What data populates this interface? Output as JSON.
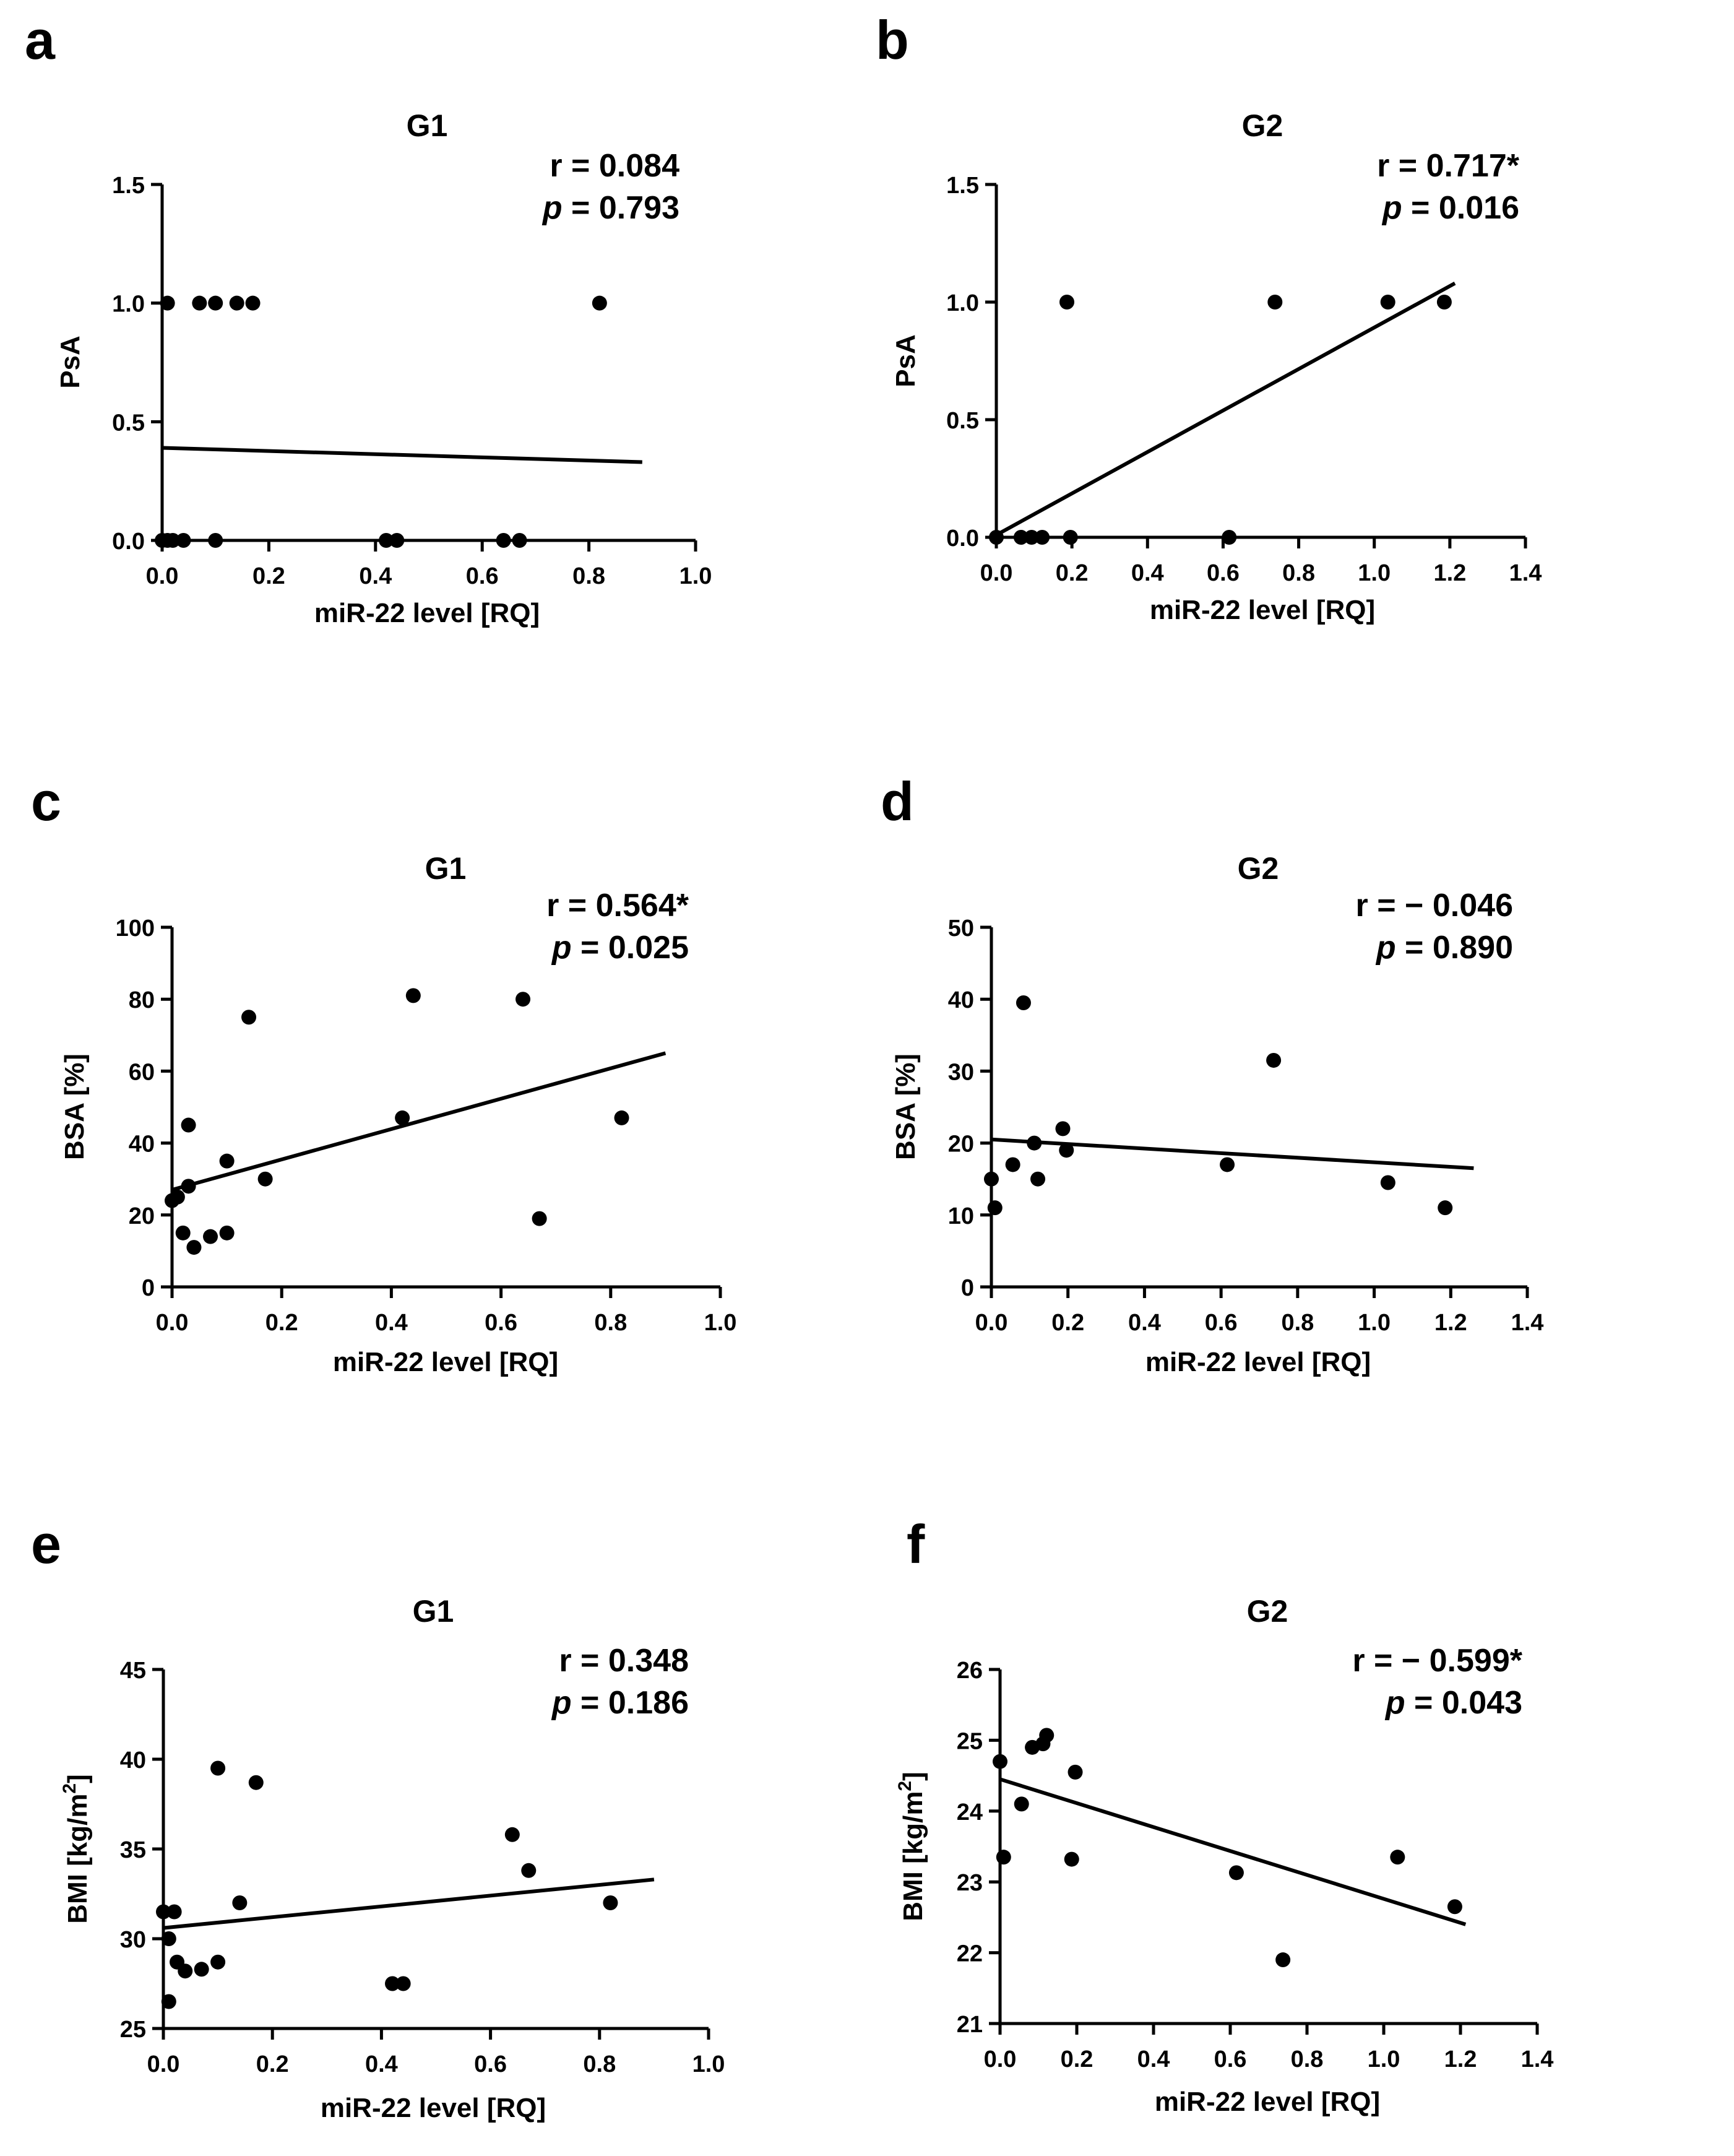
{
  "chart_data": [
    {
      "panel": "a",
      "type": "scatter",
      "title": "G1",
      "stats": {
        "r": "r = 0.084",
        "p_prefix": "p",
        "p_value": " = 0.793"
      },
      "xlabel": "miR-22 level [RQ]",
      "ylabel": "PsA",
      "xlim": [
        0,
        1.0
      ],
      "ylim": [
        0,
        1.5
      ],
      "xticks": [
        "0.0",
        "0.2",
        "0.4",
        "0.6",
        "0.8",
        "1.0"
      ],
      "yticks": [
        "0.0",
        "0.5",
        "1.0",
        "1.5"
      ],
      "points": [
        [
          0.01,
          1
        ],
        [
          0.07,
          1
        ],
        [
          0.1,
          1
        ],
        [
          0.14,
          1
        ],
        [
          0.17,
          1
        ],
        [
          0.82,
          1
        ],
        [
          0,
          0
        ],
        [
          0.01,
          0
        ],
        [
          0.02,
          0
        ],
        [
          0.04,
          0
        ],
        [
          0.1,
          0
        ],
        [
          0.42,
          0
        ],
        [
          0.44,
          0
        ],
        [
          0.64,
          0
        ],
        [
          0.67,
          0
        ]
      ],
      "fit": {
        "x": [
          0,
          0.9
        ],
        "y": [
          0.39,
          0.33
        ]
      }
    },
    {
      "panel": "b",
      "type": "scatter",
      "title": "G2",
      "stats": {
        "r": "r = 0.717*",
        "p_prefix": "p",
        "p_value": " = 0.016"
      },
      "xlabel": "miR-22 level [RQ]",
      "ylabel": "PsA",
      "xlim": [
        0,
        1.5
      ],
      "ylim": [
        0,
        1.5
      ],
      "xticks": [
        "0.0",
        "0.2",
        "0.4",
        "0.6",
        "0.8",
        "1.0",
        "1.2",
        "1.4"
      ],
      "yticks": [
        "0.0",
        "0.5",
        "1.0",
        "1.5"
      ],
      "points": [
        [
          0.2,
          1
        ],
        [
          0.79,
          1
        ],
        [
          1.11,
          1
        ],
        [
          1.27,
          1
        ],
        [
          0,
          0
        ],
        [
          0.07,
          0
        ],
        [
          0.1,
          0
        ],
        [
          0.13,
          0
        ],
        [
          0.21,
          0
        ],
        [
          0.66,
          0
        ]
      ],
      "fit": {
        "x": [
          0,
          1.3
        ],
        "y": [
          0.01,
          1.08
        ]
      }
    },
    {
      "panel": "c",
      "type": "scatter",
      "title": "G1",
      "stats": {
        "r": "r = 0.564*",
        "p_prefix": "p",
        "p_value": " = 0.025"
      },
      "xlabel": "miR-22 level [RQ]",
      "ylabel": "BSA [%]",
      "xlim": [
        0,
        1.0
      ],
      "ylim": [
        0,
        100
      ],
      "xticks": [
        "0.0",
        "0.2",
        "0.4",
        "0.6",
        "0.8",
        "1.0"
      ],
      "yticks": [
        "0",
        "20",
        "40",
        "60",
        "80",
        "100"
      ],
      "points": [
        [
          0,
          24
        ],
        [
          0.01,
          25
        ],
        [
          0.02,
          15
        ],
        [
          0.03,
          45
        ],
        [
          0.03,
          28
        ],
        [
          0.04,
          11
        ],
        [
          0.07,
          14
        ],
        [
          0.1,
          15
        ],
        [
          0.1,
          35
        ],
        [
          0.14,
          75
        ],
        [
          0.17,
          30
        ],
        [
          0.42,
          47
        ],
        [
          0.44,
          81
        ],
        [
          0.64,
          80
        ],
        [
          0.67,
          19
        ],
        [
          0.82,
          47
        ]
      ],
      "fit": {
        "x": [
          0,
          0.9
        ],
        "y": [
          27,
          65
        ]
      }
    },
    {
      "panel": "d",
      "type": "scatter",
      "title": "G2",
      "stats": {
        "r": "r = − 0.046",
        "p_prefix": "p",
        "p_value": " = 0.890"
      },
      "xlabel": "miR-22 level [RQ]",
      "ylabel": "BSA [%]",
      "xlim": [
        0,
        1.5
      ],
      "ylim": [
        0,
        50
      ],
      "xticks": [
        "0.0",
        "0.2",
        "0.4",
        "0.6",
        "0.8",
        "1.0",
        "1.2",
        "1.4"
      ],
      "yticks": [
        "0",
        "10",
        "20",
        "30",
        "40",
        "50"
      ],
      "points": [
        [
          0,
          15
        ],
        [
          0.01,
          11
        ],
        [
          0.06,
          17
        ],
        [
          0.09,
          39.5
        ],
        [
          0.12,
          20
        ],
        [
          0.13,
          15
        ],
        [
          0.2,
          22
        ],
        [
          0.21,
          19
        ],
        [
          0.66,
          17
        ],
        [
          0.79,
          31.5
        ],
        [
          1.11,
          14.5
        ],
        [
          1.27,
          11
        ]
      ],
      "fit": {
        "x": [
          0,
          1.35
        ],
        "y": [
          20.5,
          16.5
        ]
      }
    },
    {
      "panel": "e",
      "type": "scatter",
      "title": "G1",
      "stats": {
        "r": "r = 0.348",
        "p_prefix": "p",
        "p_value": " = 0.186"
      },
      "xlabel": "miR-22 level [RQ]",
      "ylabel": "BMI [kg/m",
      "ylabel_sup": "2",
      "ylabel_end": "]",
      "xlim": [
        0,
        1.0
      ],
      "ylim": [
        25,
        45
      ],
      "xticks": [
        "0.0",
        "0.2",
        "0.4",
        "0.6",
        "0.8",
        "1.0"
      ],
      "yticks": [
        "25",
        "30",
        "35",
        "40",
        "45"
      ],
      "points": [
        [
          0,
          31.5
        ],
        [
          0.01,
          26.5
        ],
        [
          0.01,
          30
        ],
        [
          0.02,
          31.5
        ],
        [
          0.025,
          28.7
        ],
        [
          0.04,
          28.2
        ],
        [
          0.07,
          28.3
        ],
        [
          0.1,
          28.7
        ],
        [
          0.1,
          39.5
        ],
        [
          0.14,
          32
        ],
        [
          0.17,
          38.7
        ],
        [
          0.42,
          27.5
        ],
        [
          0.44,
          27.5
        ],
        [
          0.64,
          35.8
        ],
        [
          0.67,
          33.8
        ],
        [
          0.82,
          32
        ]
      ],
      "fit": {
        "x": [
          0,
          0.9
        ],
        "y": [
          30.6,
          33.3
        ]
      }
    },
    {
      "panel": "f",
      "type": "scatter",
      "title": "G2",
      "stats": {
        "r": "r = − 0.599*",
        "p_prefix": "p",
        "p_value": " = 0.043"
      },
      "xlabel": "miR-22 level [RQ]",
      "ylabel": "BMI [kg/m",
      "ylabel_sup": "2",
      "ylabel_end": "]",
      "xlim": [
        0,
        1.5
      ],
      "ylim": [
        21,
        26
      ],
      "xticks": [
        "0.0",
        "0.2",
        "0.4",
        "0.6",
        "0.8",
        "1.0",
        "1.2",
        "1.4"
      ],
      "yticks": [
        "21",
        "22",
        "23",
        "24",
        "25",
        "26"
      ],
      "points": [
        [
          0,
          24.7
        ],
        [
          0.01,
          23.35
        ],
        [
          0.06,
          24.1
        ],
        [
          0.09,
          24.9
        ],
        [
          0.12,
          24.95
        ],
        [
          0.13,
          25.07
        ],
        [
          0.2,
          23.32
        ],
        [
          0.21,
          24.55
        ],
        [
          0.66,
          23.13
        ],
        [
          0.79,
          21.9
        ],
        [
          1.11,
          23.35
        ],
        [
          1.27,
          22.65
        ]
      ],
      "fit": {
        "x": [
          0,
          1.3
        ],
        "y": [
          24.45,
          22.4
        ]
      }
    }
  ]
}
